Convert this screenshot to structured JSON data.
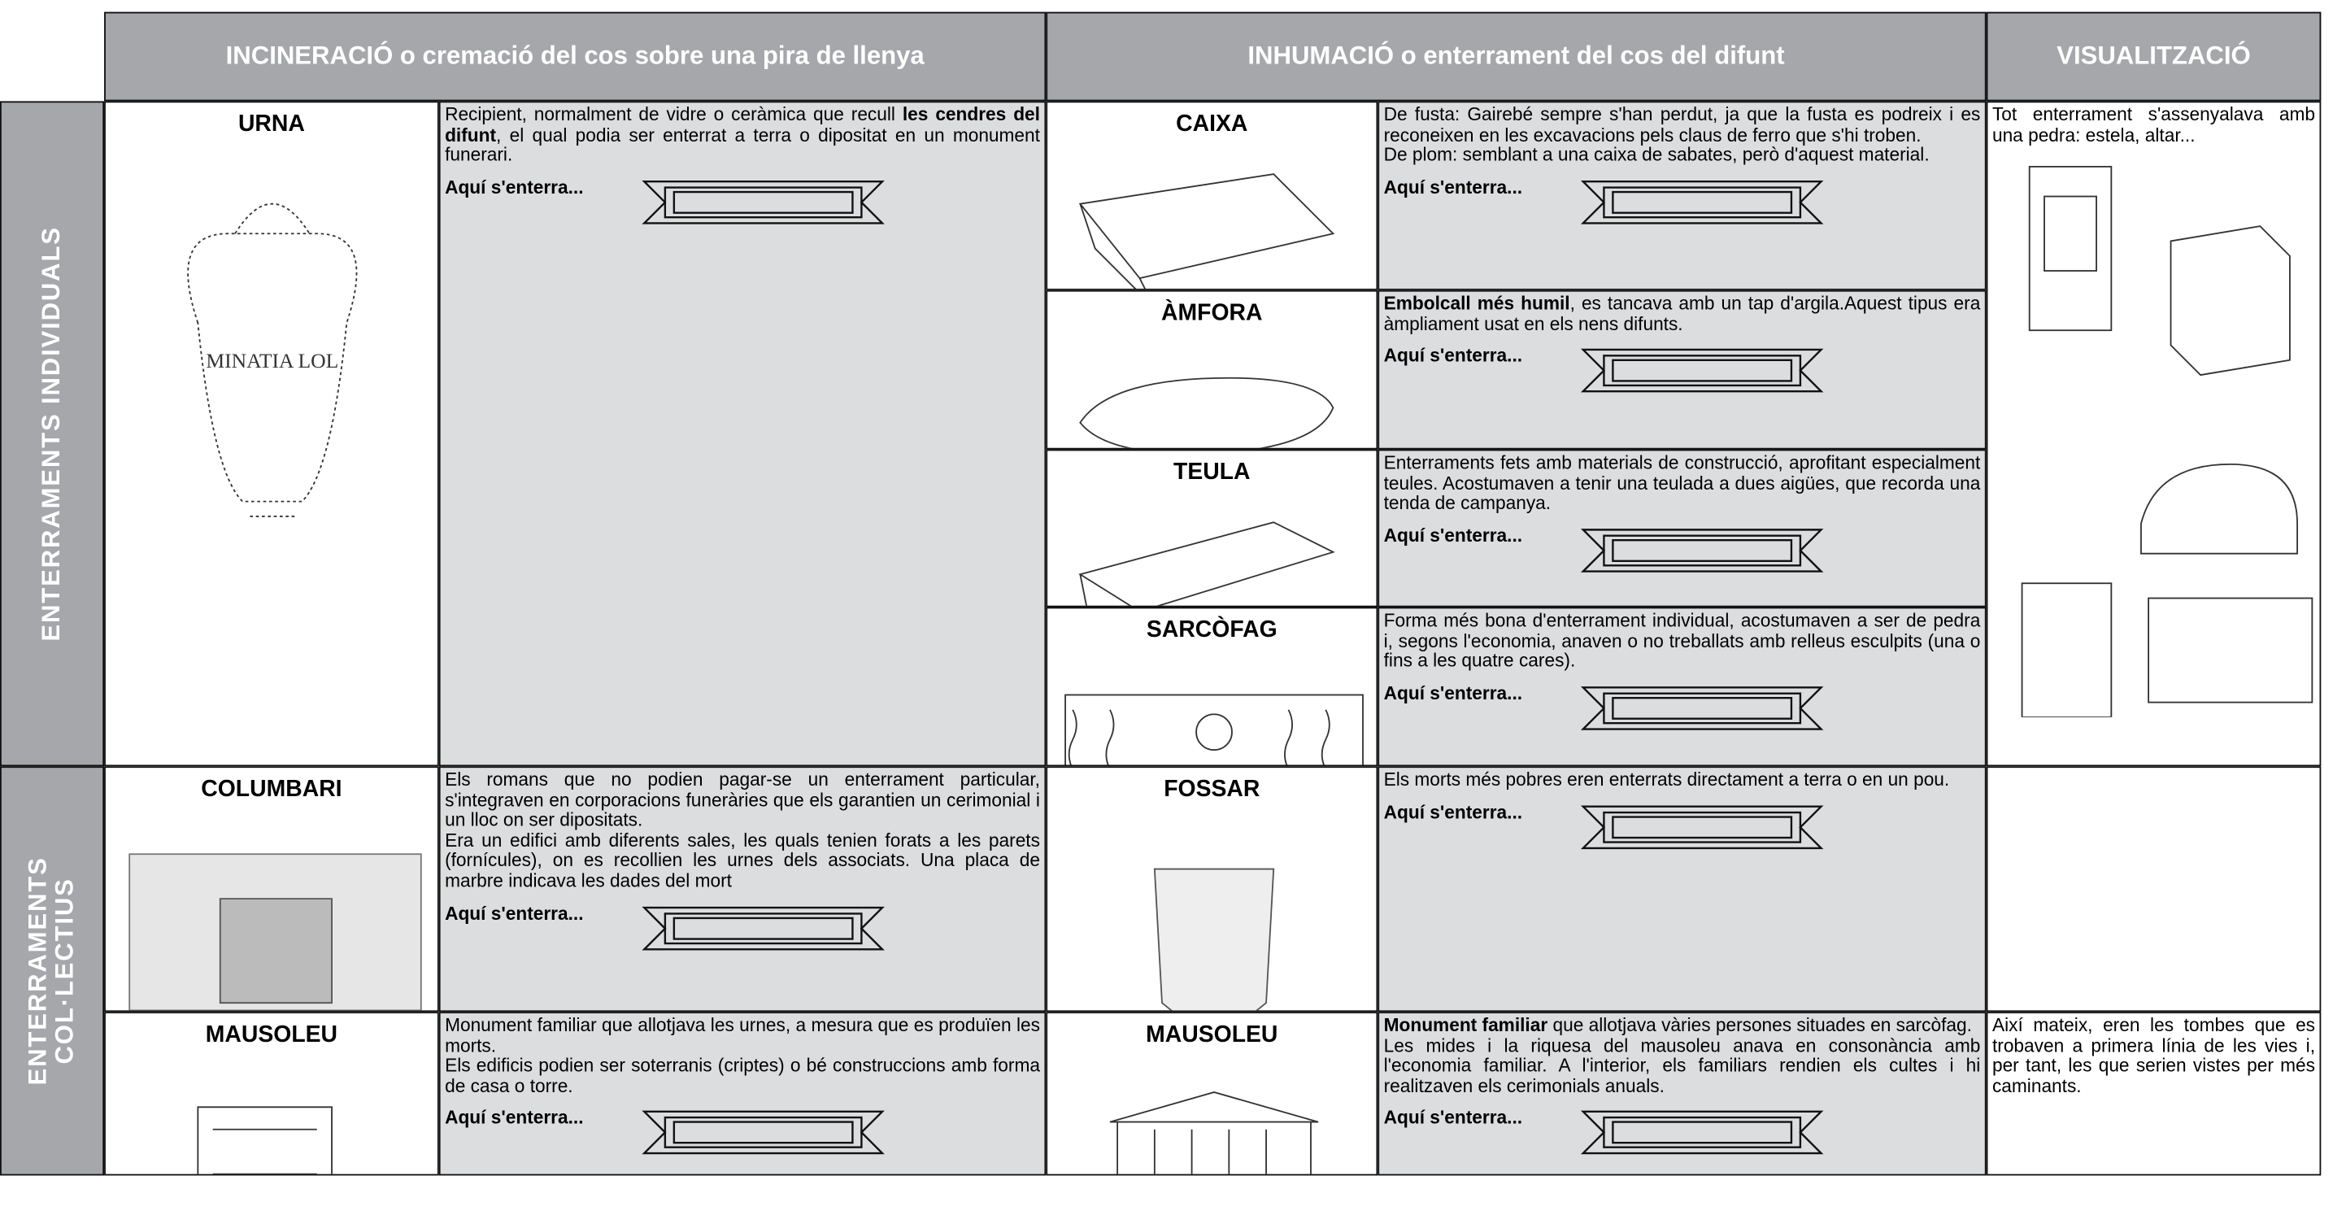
{
  "header": {
    "columns": [
      "INCINERACIÓ o cremació del cos sobre una pira de llenya",
      "INHUMACIÓ o enterrament del cos del difunt",
      "VISUALITZACIÓ"
    ]
  },
  "rows": [
    "ENTERRAMENTS  INDIVIDUALS",
    "ENTERRAMENTS COL·LECTIUS"
  ],
  "cells": [
    {
      "title": "URNA",
      "paragraphs": [
        [
          {
            "text": "Recipient, normalment de vidre  o ceràmica que recull ",
            "bold": false
          },
          {
            "text": "les cendres del difunt",
            "bold": true
          },
          {
            "text": ", el qual podia ser enterrat a terra o dipositat en un monument funerari.",
            "bold": false
          }
        ]
      ],
      "prompt": "Aquí s'enterra..."
    },
    {
      "title": "CAIXA",
      "paragraphs": [
        [
          {
            "text": "De fusta: Gairebé sempre s'han perdut, ja que la fusta es podreix i es reconeixen en les excavacions pels claus de ferro que s'hi troben.",
            "bold": false
          }
        ],
        [
          {
            "text": "De plom: semblant a una caixa de sabates, però d'aquest material.",
            "bold": false
          }
        ]
      ],
      "prompt": "Aquí s'enterra..."
    },
    {
      "title": "ÀMFORA",
      "paragraphs": [
        [
          {
            "text": "Embolcall més humil",
            "bold": true
          },
          {
            "text": ", es tancava amb un tap d'argila.Aquest tipus era àmpliament usat en els nens difunts.",
            "bold": false
          }
        ]
      ],
      "prompt": "Aquí s'enterra..."
    },
    {
      "title": "TEULA",
      "paragraphs": [
        [
          {
            "text": "Enterraments fets amb materials de construcció, aprofitant especialment teules. Acostumaven a tenir una teulada a dues aigües, que recorda una tenda de campanya.",
            "bold": false
          }
        ]
      ],
      "prompt": "Aquí s'enterra..."
    },
    {
      "title": "SARCÒFAG",
      "paragraphs": [
        [
          {
            "text": "Forma més bona d'enterrament individual, acostumaven a ser de pedra i, segons l'economia, anaven o no treballats amb relleus esculpits (una o fins a les quatre cares).",
            "bold": false
          }
        ]
      ],
      "prompt": "Aquí s'enterra..."
    },
    {
      "title": "COLUMBARI",
      "paragraphs": [
        [
          {
            "text": "Els romans que no podien pagar-se un enterrament particular, s'integraven en corporacions funeràries que els garantien un cerimonial i un lloc on ser dipositats.",
            "bold": false
          }
        ],
        [
          {
            "text": "Era un edifici amb diferents sales, les quals tenien forats a les parets (fornícules), on es recollien les urnes dels associats. Una placa de marbre indicava les dades del mort",
            "bold": false
          }
        ]
      ],
      "prompt": "Aquí s'enterra..."
    },
    {
      "title": "FOSSAR",
      "paragraphs": [
        [
          {
            "text": "Els morts més pobres eren enterrats directament a terra o en un pou.",
            "bold": false
          }
        ]
      ],
      "prompt": "Aquí s'enterra..."
    },
    {
      "title": "MAUSOLEU",
      "paragraphs": [
        [
          {
            "text": "Monument familiar que allotjava les urnes, a mesura que es produïen les morts.",
            "bold": false
          }
        ],
        [
          {
            "text": "Els edificis podien ser soterranis (criptes) o bé construccions amb forma de casa o torre.",
            "bold": false
          }
        ]
      ],
      "prompt": "Aquí s'enterra..."
    },
    {
      "title": "MAUSOLEU",
      "paragraphs": [
        [
          {
            "text": "Monument familiar",
            "bold": true
          },
          {
            "text": " que allotjava vàries persones situades en sarcòfag.",
            "bold": false
          }
        ],
        [
          {
            "text": "Les mides i la riquesa del mausoleu anava en consonància amb l'economia familiar. A l'interior, els familiars rendien els cultes i hi realitzaven els cerimonials anuals.",
            "bold": false
          }
        ]
      ],
      "prompt": "Aquí s'enterra..."
    }
  ],
  "visualization": [
    "Tot enterrament s'assenyalava amb una pedra: estela, altar...",
    "Així mateix, eren les tombes que es trobaven a primera línia de les vies i, per tant, les que serien vistes per més caminants."
  ]
}
